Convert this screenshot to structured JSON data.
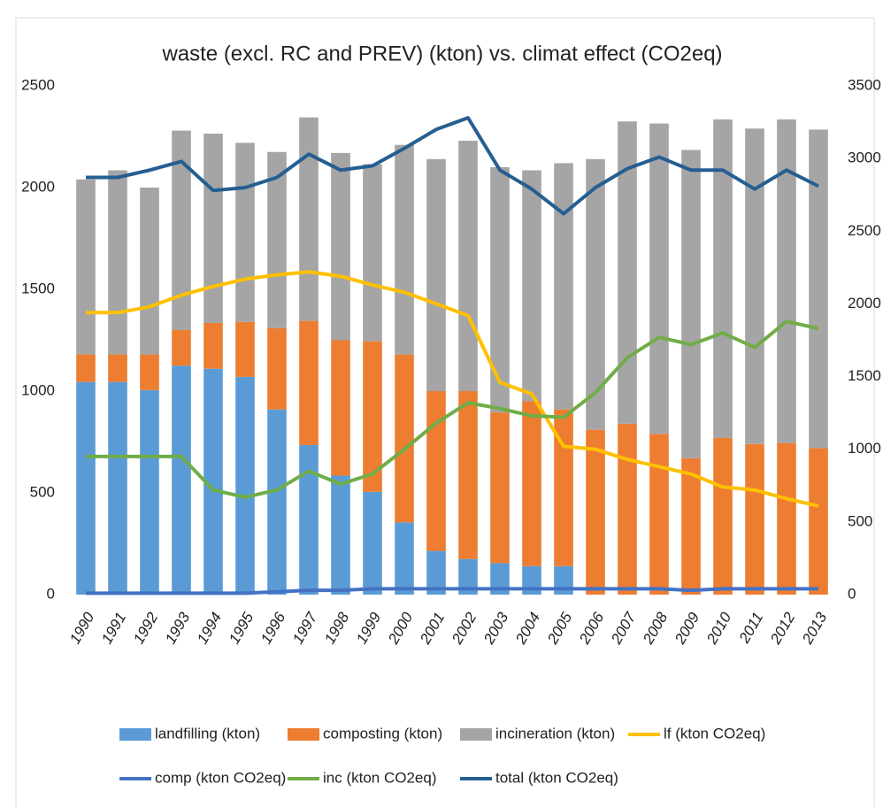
{
  "chart_data": {
    "type": "bar_line",
    "title": "waste (excl. RC and PREV) (kton) vs. climat effect (CO2eq)",
    "categories": [
      "1990",
      "1991",
      "1992",
      "1993",
      "1994",
      "1995",
      "1996",
      "1997",
      "1998",
      "1999",
      "2000",
      "2001",
      "2002",
      "2003",
      "2004",
      "2005",
      "2006",
      "2007",
      "2008",
      "2009",
      "2010",
      "2011",
      "2012",
      "2013"
    ],
    "series": [
      {
        "name": "landfilling (kton)",
        "kind": "bar",
        "color": "#5b9bd5",
        "values": [
          1045,
          1045,
          1005,
          1125,
          1110,
          1070,
          910,
          735,
          585,
          505,
          355,
          215,
          175,
          155,
          140,
          140,
          0,
          0,
          0,
          0,
          0,
          0,
          0,
          0
        ]
      },
      {
        "name": "composting (kton)",
        "kind": "bar",
        "color": "#ed7d31",
        "values": [
          135,
          135,
          175,
          175,
          225,
          270,
          400,
          610,
          665,
          740,
          825,
          785,
          825,
          740,
          810,
          770,
          810,
          840,
          790,
          670,
          770,
          740,
          745,
          720
        ]
      },
      {
        "name": "incineration (kton)",
        "kind": "bar",
        "color": "#a5a5a5",
        "values": [
          860,
          905,
          820,
          980,
          930,
          880,
          865,
          1000,
          920,
          870,
          1030,
          1140,
          1230,
          1205,
          1135,
          1210,
          1330,
          1485,
          1525,
          1515,
          1565,
          1550,
          1590,
          1565
        ]
      },
      {
        "name": "lf (kton CO2eq)",
        "kind": "line",
        "axis": "y2",
        "color": "#ffc000",
        "values": [
          1940,
          1940,
          1980,
          2060,
          2120,
          2170,
          2200,
          2220,
          2190,
          2130,
          2080,
          2000,
          1920,
          1460,
          1380,
          1020,
          1000,
          930,
          880,
          830,
          740,
          720,
          660,
          610
        ]
      },
      {
        "name": "comp (kton CO2eq)",
        "kind": "line",
        "axis": "y2",
        "color": "#4472c4",
        "values": [
          10,
          10,
          10,
          10,
          10,
          10,
          20,
          30,
          30,
          40,
          40,
          40,
          40,
          40,
          40,
          40,
          40,
          40,
          40,
          30,
          40,
          40,
          40,
          40
        ]
      },
      {
        "name": "inc (kton CO2eq)",
        "kind": "line",
        "axis": "y2",
        "color": "#70ad47",
        "values": [
          950,
          950,
          950,
          950,
          720,
          670,
          720,
          850,
          760,
          830,
          1000,
          1180,
          1320,
          1280,
          1230,
          1220,
          1390,
          1630,
          1770,
          1720,
          1800,
          1700,
          1880,
          1830
        ]
      },
      {
        "name": "total (kton CO2eq)",
        "kind": "line",
        "axis": "y2",
        "color": "#255e91",
        "values": [
          2870,
          2870,
          2920,
          2980,
          2780,
          2800,
          2870,
          3030,
          2920,
          2950,
          3070,
          3200,
          3280,
          2920,
          2790,
          2620,
          2800,
          2930,
          3010,
          2920,
          2920,
          2790,
          2920,
          2810
        ]
      }
    ],
    "ylim": [
      0,
      2500
    ],
    "yticks": [
      0,
      500,
      1000,
      1500,
      2000,
      2500
    ],
    "y2lim": [
      0,
      3500
    ],
    "y2ticks": [
      0,
      500,
      1000,
      1500,
      2000,
      2500,
      3000,
      3500
    ]
  }
}
